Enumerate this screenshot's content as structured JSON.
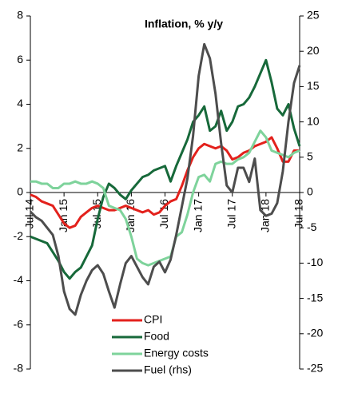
{
  "chart_data": {
    "type": "line",
    "title": "Inflation, % y/y",
    "categories": [
      "Jul 14",
      null,
      null,
      null,
      null,
      null,
      "Jan 15",
      null,
      null,
      null,
      null,
      null,
      "Jul 15",
      null,
      null,
      null,
      null,
      null,
      "Jan 16",
      null,
      null,
      null,
      null,
      null,
      "Jul 16",
      null,
      null,
      null,
      null,
      null,
      "Jan 17",
      null,
      null,
      null,
      null,
      null,
      "Jul 17",
      null,
      null,
      null,
      null,
      null,
      "Jan 18",
      null,
      null,
      null,
      null,
      null,
      "Jul 18"
    ],
    "series": [
      {
        "name": "CPI",
        "color": "#e3211c",
        "values": [
          -0.1,
          -0.2,
          -0.4,
          -0.5,
          -0.6,
          -1.0,
          -1.4,
          -1.6,
          -1.5,
          -1.1,
          -0.9,
          -0.7,
          -0.6,
          -0.7,
          -0.8,
          -0.8,
          -0.7,
          -0.6,
          -0.7,
          -0.8,
          -0.9,
          -0.8,
          -1.0,
          -0.9,
          -0.6,
          -0.4,
          -0.3,
          0.3,
          1.0,
          1.6,
          2.0,
          2.2,
          2.1,
          2.0,
          2.1,
          1.9,
          1.5,
          1.6,
          1.8,
          1.9,
          2.1,
          2.2,
          2.3,
          2.5,
          2.0,
          1.4,
          1.4,
          1.9,
          1.9
        ]
      },
      {
        "name": "Food",
        "color": "#17693a",
        "values": [
          -2.0,
          -2.1,
          -2.2,
          -2.3,
          -2.7,
          -3.1,
          -3.6,
          -3.9,
          -3.6,
          -3.4,
          -2.9,
          -2.4,
          -1.2,
          -0.2,
          0.4,
          0.2,
          -0.1,
          -0.3,
          0.1,
          0.4,
          0.7,
          0.8,
          1.0,
          1.1,
          1.2,
          0.5,
          1.2,
          1.8,
          2.4,
          3.2,
          3.5,
          3.9,
          2.8,
          3.0,
          3.7,
          2.8,
          3.2,
          3.9,
          4.0,
          4.3,
          4.8,
          5.4,
          6.0,
          5.0,
          3.8,
          3.5,
          4.0,
          2.9,
          2.1
        ]
      },
      {
        "name": "Energy costs",
        "color": "#7ed39b",
        "values": [
          0.5,
          0.5,
          0.4,
          0.4,
          0.2,
          0.2,
          0.4,
          0.4,
          0.5,
          0.4,
          0.4,
          0.5,
          0.4,
          0.2,
          -0.6,
          -0.7,
          -0.8,
          -1.2,
          -2.0,
          -3.0,
          -3.2,
          -3.3,
          -3.2,
          -3.1,
          -3.0,
          -2.9,
          -2.0,
          -1.8,
          -1.0,
          0.0,
          0.7,
          0.8,
          0.5,
          1.3,
          1.4,
          1.3,
          1.3,
          1.5,
          1.6,
          1.8,
          2.3,
          2.8,
          2.5,
          1.9,
          1.8,
          1.7,
          1.6,
          1.8,
          1.9
        ]
      },
      {
        "name": "Fuel (rhs)",
        "color": "#4d4d4d",
        "axis": "y2",
        "values": [
          -2.7,
          -3.5,
          -4,
          -5,
          -6,
          -9,
          -14,
          -16.5,
          -17.3,
          -14.5,
          -12.5,
          -11,
          -10.3,
          -11.5,
          -14,
          -16.3,
          -13,
          -10,
          -9,
          -10.5,
          -12,
          -13,
          -10.5,
          -9.8,
          -11.3,
          -9.5,
          -6,
          -2,
          2,
          8,
          16.5,
          21,
          19,
          14,
          7,
          1,
          0,
          3.5,
          3.5,
          1.5,
          4.8,
          -2.5,
          -3.3,
          -3,
          -1.5,
          3,
          10,
          15.5,
          18
        ]
      }
    ],
    "ylim": [
      -8,
      8
    ],
    "yticks": [
      -8,
      -6,
      -4,
      -2,
      0,
      2,
      4,
      6,
      8
    ],
    "y2lim": [
      -25,
      25
    ],
    "y2ticks": [
      -25,
      -20,
      -15,
      -10,
      -5,
      0,
      5,
      10,
      15,
      20,
      25
    ],
    "legend": "bottom"
  }
}
